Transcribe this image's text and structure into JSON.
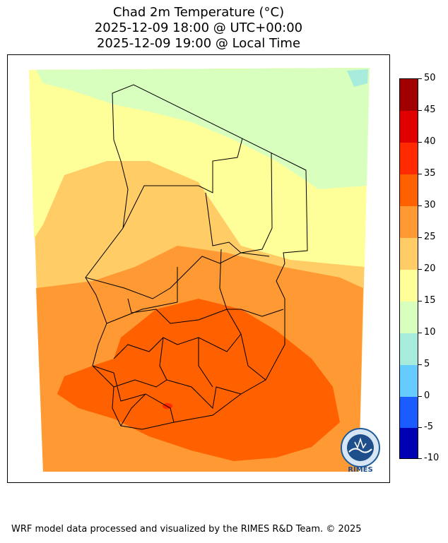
{
  "title": {
    "line1": "Chad 2m Temperature (°C)",
    "line2": "2025-12-09 18:00 @ UTC+00:00",
    "line3": "2025-12-09 19:00 @ Local Time"
  },
  "colorbar": {
    "ticks": [
      "50",
      "45",
      "40",
      "35",
      "30",
      "25",
      "20",
      "15",
      "10",
      "5",
      "0",
      "-5",
      "-10"
    ],
    "colors": [
      "#a00000",
      "#e00000",
      "#ff2a00",
      "#ff6000",
      "#ff9933",
      "#ffcc66",
      "#ffff99",
      "#d9ffbf",
      "#a6ebdc",
      "#66ccff",
      "#1a5cff",
      "#0a2ee6",
      "#0000b3"
    ]
  },
  "logo": {
    "text": "RIMES"
  },
  "footer": {
    "credit": "WRF model data processed and visualized by the RIMES R&D Team. © 2025"
  }
}
